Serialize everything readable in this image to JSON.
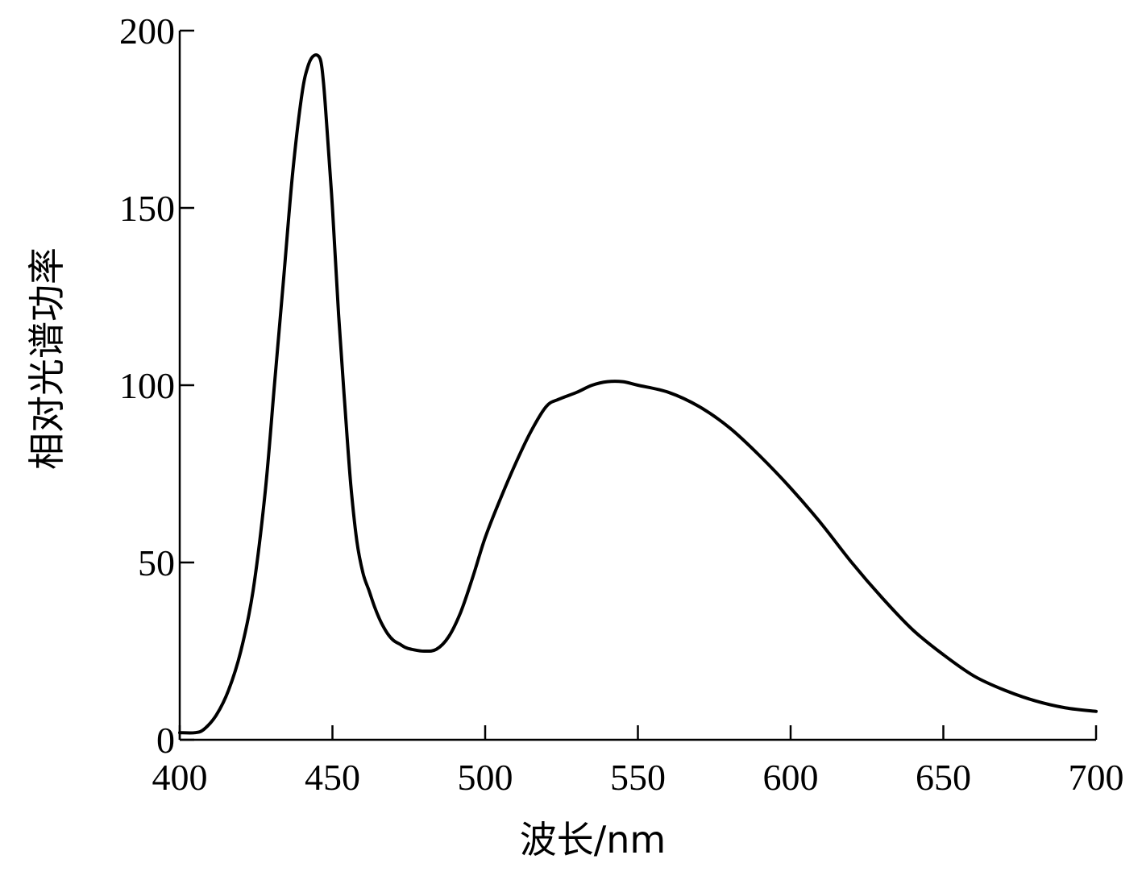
{
  "chart_data": {
    "type": "line",
    "title": "",
    "xlabel": "波长/nm",
    "ylabel": "相对光谱功率",
    "xlim": [
      400,
      700
    ],
    "ylim": [
      0,
      200
    ],
    "x_ticks": [
      400,
      450,
      500,
      550,
      600,
      650,
      700
    ],
    "y_ticks": [
      0,
      50,
      100,
      150,
      200
    ],
    "grid": false,
    "series": [
      {
        "x": [
          400,
          405,
          408,
          412,
          416,
          420,
          424,
          428,
          431,
          434,
          437,
          440,
          442,
          444,
          446,
          447,
          448,
          450,
          452,
          454,
          456,
          458,
          460,
          462,
          464,
          466,
          468,
          470,
          472,
          474,
          476,
          480,
          484,
          488,
          492,
          496,
          500,
          505,
          510,
          515,
          520,
          524,
          530,
          535,
          540,
          545,
          550,
          560,
          570,
          580,
          590,
          600,
          610,
          620,
          630,
          640,
          650,
          660,
          670,
          680,
          690,
          700
        ],
        "y": [
          2,
          2,
          3,
          7,
          14,
          25,
          42,
          70,
          100,
          130,
          160,
          182,
          190,
          193,
          192,
          186,
          175,
          150,
          120,
          95,
          72,
          56,
          47,
          42,
          37,
          33,
          30,
          28,
          27,
          26,
          25.5,
          25,
          25.5,
          29,
          36,
          46,
          57,
          68,
          78,
          87,
          94,
          96,
          98,
          100,
          101,
          101,
          100,
          98,
          94,
          88,
          80,
          71,
          61,
          50,
          40,
          31,
          24,
          18,
          14,
          11,
          9,
          8
        ]
      }
    ]
  }
}
